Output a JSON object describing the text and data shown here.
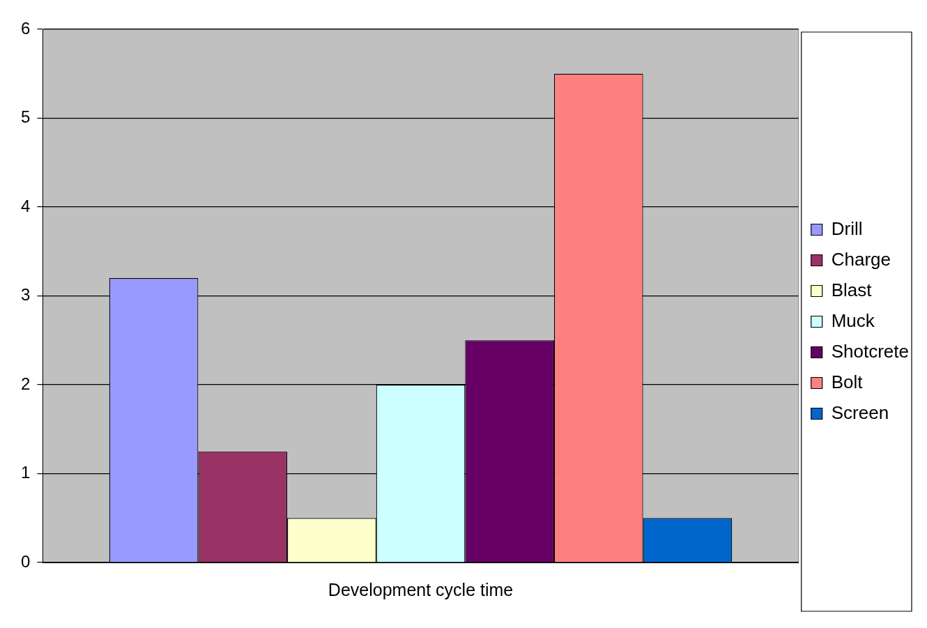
{
  "chart_data": {
    "type": "bar",
    "categories": [
      "Development cycle time"
    ],
    "series": [
      {
        "name": "Drill",
        "color": "#9999ff",
        "values": [
          3.2
        ]
      },
      {
        "name": "Charge",
        "color": "#993366",
        "values": [
          1.25
        ]
      },
      {
        "name": "Blast",
        "color": "#ffffcc",
        "values": [
          0.5
        ]
      },
      {
        "name": "Muck",
        "color": "#ccffff",
        "values": [
          2
        ]
      },
      {
        "name": "Shotcrete",
        "color": "#660066",
        "values": [
          2.5
        ]
      },
      {
        "name": "Bolt",
        "color": "#ff8080",
        "values": [
          5.5
        ]
      },
      {
        "name": "Screen",
        "color": "#0066cc",
        "values": [
          0.5
        ]
      }
    ],
    "ylim": [
      0,
      6
    ],
    "yticks": [
      0,
      1,
      2,
      3,
      4,
      5,
      6
    ],
    "grid": "y",
    "legend": "right"
  }
}
